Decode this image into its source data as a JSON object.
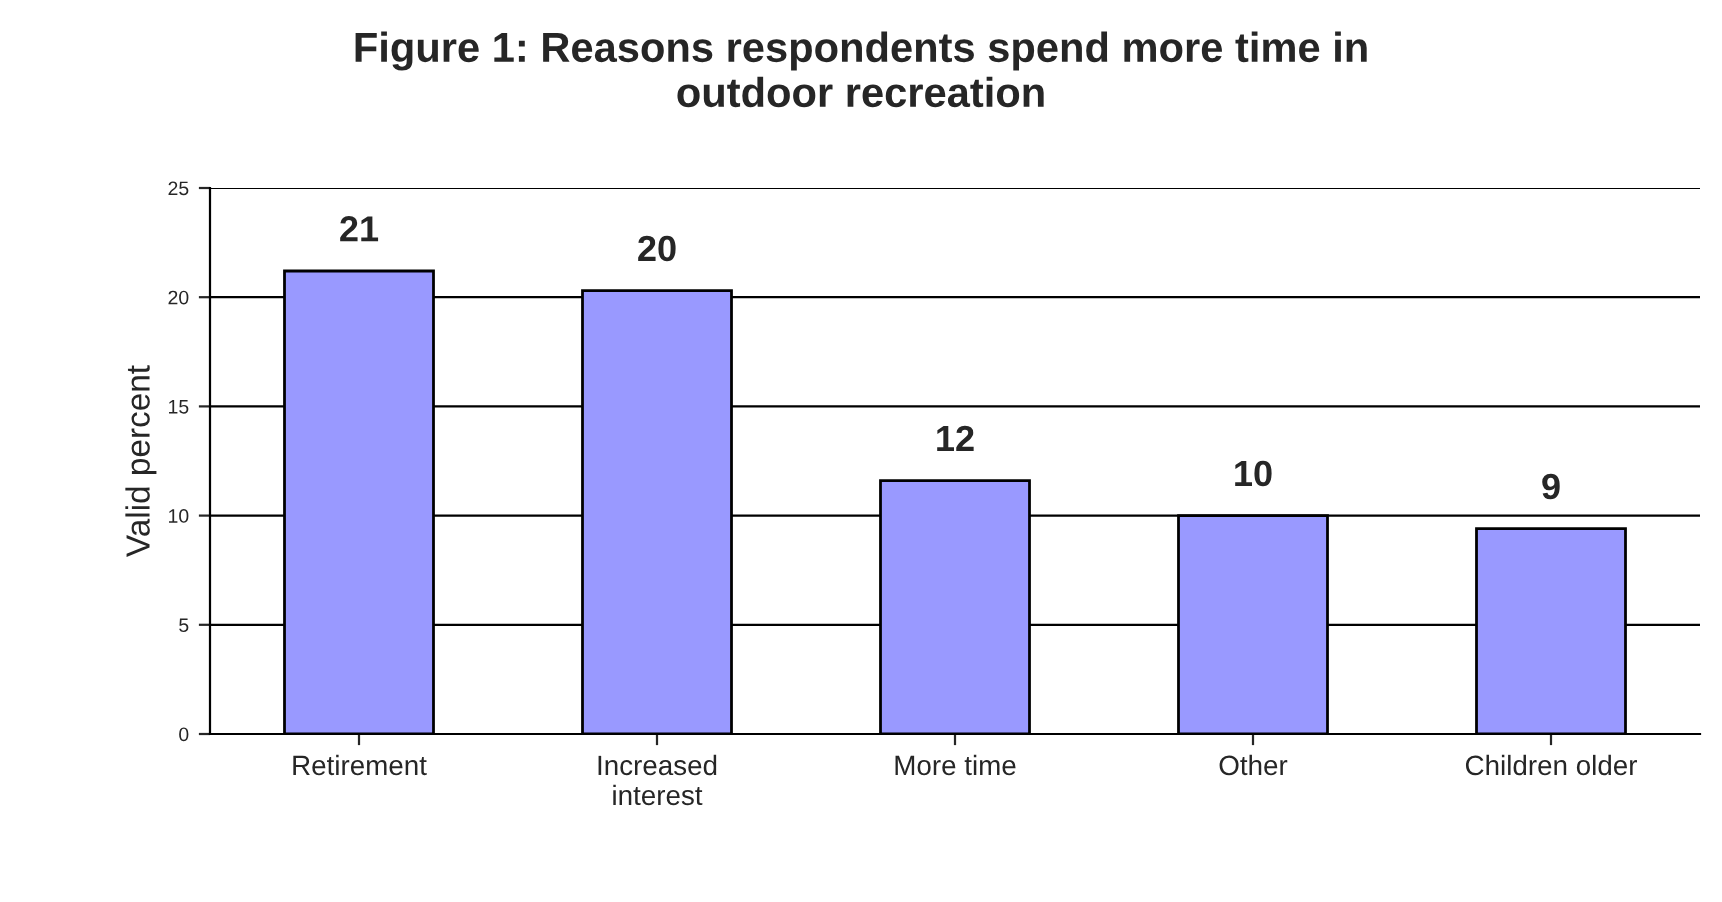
{
  "chart_data": {
    "type": "bar",
    "title": "Figure 1: Reasons respondents spend more time in\noutdoor recreation",
    "ylabel": "Valid percent",
    "categories": [
      "Retirement",
      "Increased\ninterest",
      "More time",
      "Other",
      "Children older"
    ],
    "values": [
      21.2,
      20.3,
      11.6,
      10.0,
      9.4
    ],
    "value_labels": [
      "21",
      "20",
      "12",
      "10",
      "9"
    ],
    "color": "#9999ff",
    "ylim": [
      0,
      25
    ],
    "yticks": [
      0,
      5,
      10,
      15,
      20,
      25
    ],
    "grid": "y",
    "legend": false
  }
}
